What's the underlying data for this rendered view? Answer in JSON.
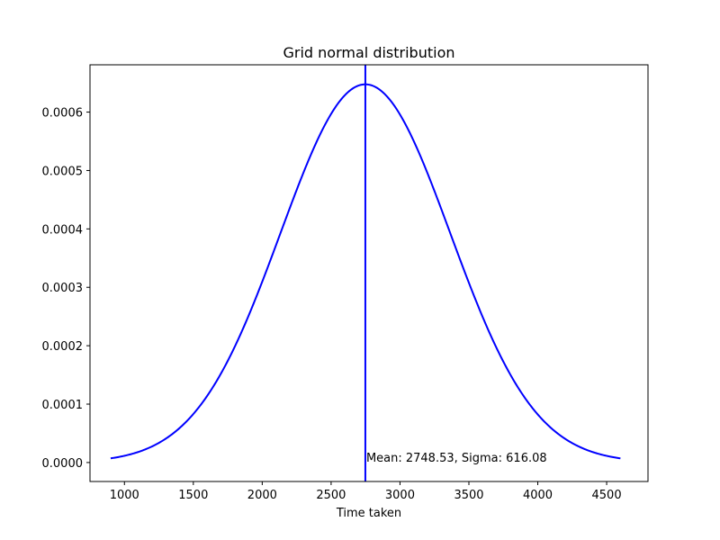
{
  "chart_data": {
    "type": "line",
    "title": "Grid normal distribution",
    "xlabel": "Time taken",
    "ylabel": "",
    "xlim": [
      750,
      4800
    ],
    "ylim": [
      -3.25e-05,
      0.000681
    ],
    "x_ticks": [
      1000,
      1500,
      2000,
      2500,
      3000,
      3500,
      4000,
      4500
    ],
    "x_tick_labels": [
      "1000",
      "1500",
      "2000",
      "2500",
      "3000",
      "3500",
      "4000",
      "4500"
    ],
    "y_ticks": [
      0.0,
      0.0001,
      0.0002,
      0.0003,
      0.0004,
      0.0005,
      0.0006
    ],
    "y_tick_labels": [
      "0.0000",
      "0.0001",
      "0.0002",
      "0.0003",
      "0.0004",
      "0.0005",
      "0.0006"
    ],
    "grid": false,
    "mean": 2748.53,
    "sigma": 616.08,
    "x_range": [
      900,
      4600
    ],
    "series_color": "#0000ff",
    "mean_line": {
      "x": 2748.53,
      "color": "#0000ff"
    },
    "annotation": {
      "text": "Mean: 2748.53, Sigma: 616.08",
      "x": 2748.53,
      "y": 0.0
    }
  }
}
